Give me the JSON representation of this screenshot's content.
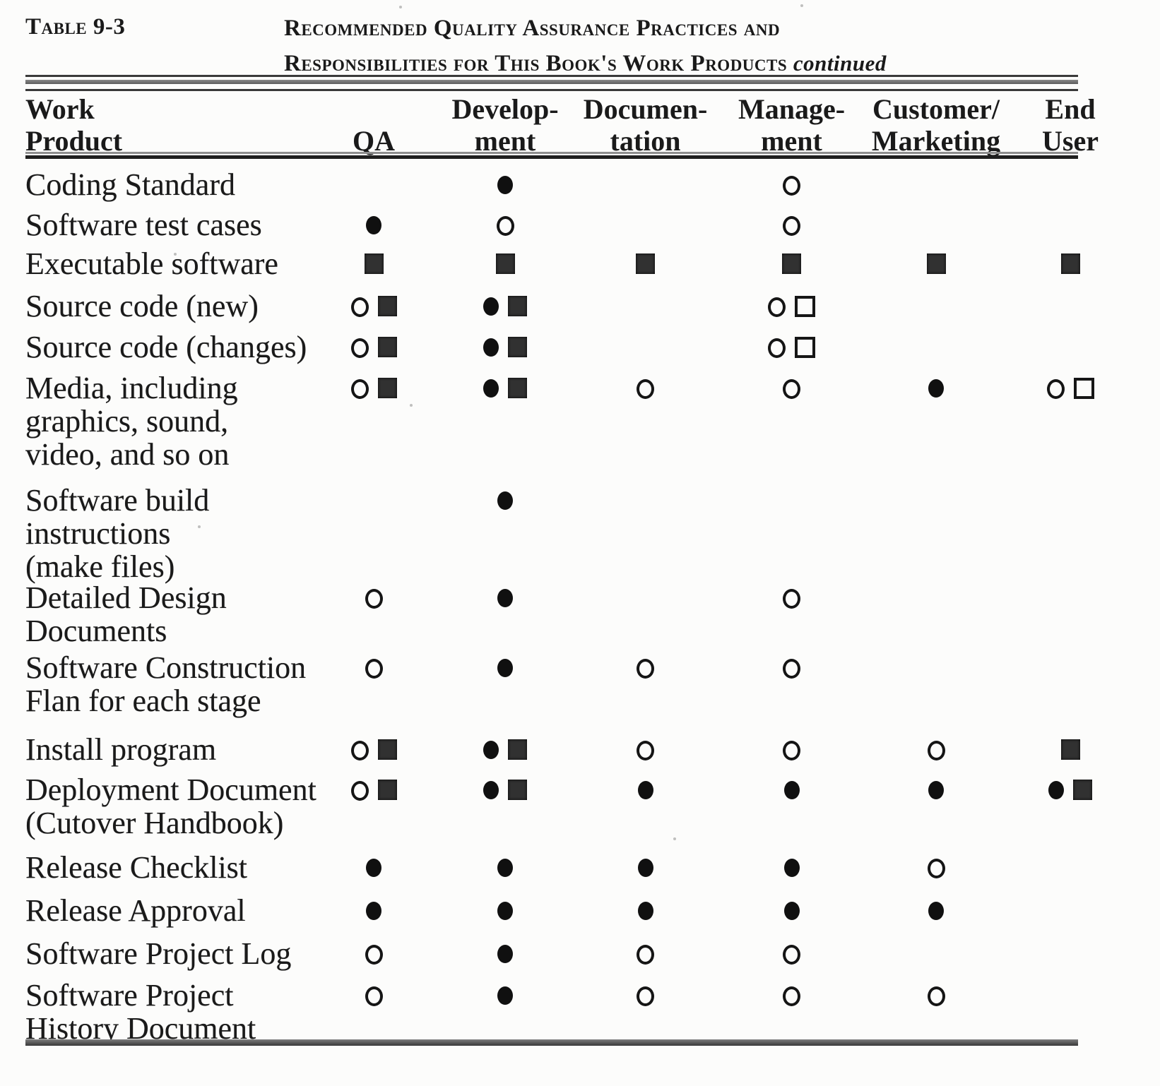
{
  "document": {
    "table_label": "Table 9-3",
    "title_line1": "Recommended Quality Assurance Practices and",
    "title_line2": "Responsibilities for This Book's Work Products",
    "title_continued": "continued"
  },
  "colors": {
    "ink": "#1a1a1a",
    "square_fill": "#313131",
    "paper": "#fcfcfb"
  },
  "symbols_legend": {
    "filled-circle": "●",
    "open-circle": "○",
    "filled-square": "■",
    "open-square": "□"
  },
  "table": {
    "columns": [
      {
        "id": "work-product",
        "lines": [
          "Work",
          "Product"
        ]
      },
      {
        "id": "qa",
        "lines": [
          "QA"
        ]
      },
      {
        "id": "development",
        "lines": [
          "Develop-",
          "ment"
        ]
      },
      {
        "id": "documentation",
        "lines": [
          "Documen-",
          "tation"
        ]
      },
      {
        "id": "management",
        "lines": [
          "Manage-",
          "ment"
        ]
      },
      {
        "id": "customer-marketing",
        "lines": [
          "Customer/",
          "Marketing"
        ]
      },
      {
        "id": "end-user",
        "lines": [
          "End",
          "User"
        ]
      }
    ],
    "rows": [
      {
        "label_lines": [
          "Coding Standard"
        ],
        "cells": [
          [],
          [
            "filled-circle"
          ],
          [],
          [
            "open-circle"
          ],
          [],
          []
        ]
      },
      {
        "label_lines": [
          "Software test cases"
        ],
        "cells": [
          [
            "filled-circle"
          ],
          [
            "open-circle"
          ],
          [],
          [
            "open-circle"
          ],
          [],
          []
        ]
      },
      {
        "label_lines": [
          "Executable software"
        ],
        "cells": [
          [
            "filled-square"
          ],
          [
            "filled-square"
          ],
          [
            "filled-square"
          ],
          [
            "filled-square"
          ],
          [
            "filled-square"
          ],
          [
            "filled-square"
          ]
        ]
      },
      {
        "label_lines": [
          "Source code (new)"
        ],
        "cells": [
          [
            "open-circle",
            "filled-square"
          ],
          [
            "filled-circle",
            "filled-square"
          ],
          [],
          [
            "open-circle",
            "open-square"
          ],
          [],
          []
        ]
      },
      {
        "label_lines": [
          "Source code (changes)"
        ],
        "cells": [
          [
            "open-circle",
            "filled-square"
          ],
          [
            "filled-circle",
            "filled-square"
          ],
          [],
          [
            "open-circle",
            "open-square"
          ],
          [],
          []
        ]
      },
      {
        "label_lines": [
          "Media, including",
          "graphics, sound,",
          "video, and so on"
        ],
        "cells": [
          [
            "open-circle",
            "filled-square"
          ],
          [
            "filled-circle",
            "filled-square"
          ],
          [
            "open-circle"
          ],
          [
            "open-circle"
          ],
          [
            "filled-circle"
          ],
          [
            "open-circle",
            "open-square"
          ]
        ]
      },
      {
        "label_lines": [
          "Software  build",
          "instructions",
          "(make files)"
        ],
        "cells": [
          [],
          [
            "filled-circle"
          ],
          [],
          [],
          [],
          []
        ]
      },
      {
        "label_lines": [
          "Detailed Design",
          "Documents"
        ],
        "cells": [
          [
            "open-circle"
          ],
          [
            "filled-circle"
          ],
          [],
          [
            "open-circle"
          ],
          [],
          []
        ]
      },
      {
        "label_lines": [
          "Software  Construction",
          "Flan for each stage"
        ],
        "cells": [
          [
            "open-circle"
          ],
          [
            "filled-circle"
          ],
          [
            "open-circle"
          ],
          [
            "open-circle"
          ],
          [],
          []
        ]
      },
      {
        "label_lines": [
          "Install program"
        ],
        "cells": [
          [
            "open-circle",
            "filled-square"
          ],
          [
            "filled-circle",
            "filled-square"
          ],
          [
            "open-circle"
          ],
          [
            "open-circle"
          ],
          [
            "open-circle"
          ],
          [
            "filled-square"
          ]
        ]
      },
      {
        "label_lines": [
          "Deployment Document",
          "(Cutover  Handbook)"
        ],
        "cells": [
          [
            "open-circle",
            "filled-square"
          ],
          [
            "filled-circle",
            "filled-square"
          ],
          [
            "filled-circle"
          ],
          [
            "filled-circle"
          ],
          [
            "filled-circle"
          ],
          [
            "filled-circle",
            "filled-square"
          ]
        ]
      },
      {
        "label_lines": [
          "Release  Checklist"
        ],
        "cells": [
          [
            "filled-circle"
          ],
          [
            "filled-circle"
          ],
          [
            "filled-circle"
          ],
          [
            "filled-circle"
          ],
          [
            "open-circle"
          ],
          []
        ]
      },
      {
        "label_lines": [
          "Release   Approval"
        ],
        "cells": [
          [
            "filled-circle"
          ],
          [
            "filled-circle"
          ],
          [
            "filled-circle"
          ],
          [
            "filled-circle"
          ],
          [
            "filled-circle"
          ],
          []
        ]
      },
      {
        "label_lines": [
          "Software  Project Log"
        ],
        "cells": [
          [
            "open-circle"
          ],
          [
            "filled-circle"
          ],
          [
            "open-circle"
          ],
          [
            "open-circle"
          ],
          [],
          []
        ]
      },
      {
        "label_lines": [
          "Software  Project",
          "History Document"
        ],
        "cells": [
          [
            "open-circle"
          ],
          [
            "filled-circle"
          ],
          [
            "open-circle"
          ],
          [
            "open-circle"
          ],
          [
            "open-circle"
          ],
          []
        ]
      }
    ]
  }
}
